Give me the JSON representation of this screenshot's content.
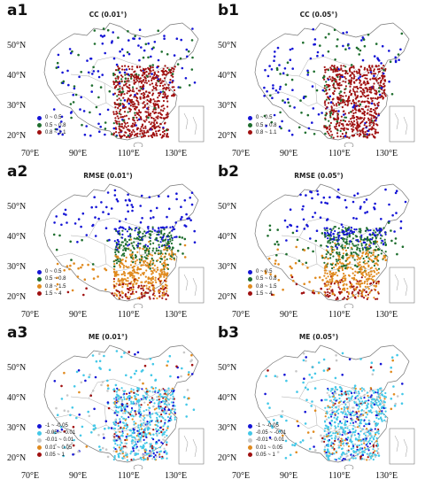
{
  "panels": [
    {
      "id": "a1",
      "title": "CC (0.01°)",
      "legend": [
        {
          "label": "0 ~ 0.5",
          "color": "#1515d6"
        },
        {
          "label": "0.5 ~ 0.8",
          "color": "#1e6e2e"
        },
        {
          "label": "0.8 ~ 1.1",
          "color": "#a01010"
        }
      ]
    },
    {
      "id": "b1",
      "title": "CC (0.05°)",
      "legend": [
        {
          "label": "0 ~ 0.5",
          "color": "#1515d6"
        },
        {
          "label": "0.5 ~ 0.8",
          "color": "#1e6e2e"
        },
        {
          "label": "0.8 ~ 1.1",
          "color": "#a01010"
        }
      ]
    },
    {
      "id": "a2",
      "title": "RMSE (0.01°)",
      "legend": [
        {
          "label": "0 ~ 0.5",
          "color": "#1515d6"
        },
        {
          "label": "0.5 ~ 0.8",
          "color": "#1e6e2e"
        },
        {
          "label": "0.8 ~ 1.5",
          "color": "#e08a1e"
        },
        {
          "label": "1.5 ~ 4",
          "color": "#a01010"
        }
      ]
    },
    {
      "id": "b2",
      "title": "RMSE (0.05°)",
      "legend": [
        {
          "label": "0 ~ 0.5",
          "color": "#1515d6"
        },
        {
          "label": "0.5 ~ 0.8",
          "color": "#1e6e2e"
        },
        {
          "label": "0.8 ~ 1.5",
          "color": "#e08a1e"
        },
        {
          "label": "1.5 ~ 4",
          "color": "#a01010"
        }
      ]
    },
    {
      "id": "a3",
      "title": "ME (0.01°)",
      "legend": [
        {
          "label": "-1 ~ -0.05",
          "color": "#1515d6"
        },
        {
          "label": "-0.05 ~ -0.01",
          "color": "#44c8e8"
        },
        {
          "label": "-0.01 ~ 0.01",
          "color": "#c8c8c8"
        },
        {
          "label": "0.01 ~ 0.05",
          "color": "#e08a1e"
        },
        {
          "label": "0.05 ~ 1",
          "color": "#a01010"
        }
      ]
    },
    {
      "id": "b3",
      "title": "ME (0.05°)",
      "legend": [
        {
          "label": "-1 ~ -0.05",
          "color": "#1515d6"
        },
        {
          "label": "-0.05 ~ -0.01",
          "color": "#44c8e8"
        },
        {
          "label": "-0.01 ~ 0.01",
          "color": "#c8c8c8"
        },
        {
          "label": "0.01 ~ 0.05",
          "color": "#e08a1e"
        },
        {
          "label": "0.05 ~ 1",
          "color": "#a01010"
        }
      ]
    }
  ],
  "axes": {
    "lat_labels": [
      "50°N",
      "40°N",
      "30°N",
      "20°N"
    ],
    "lon_labels": [
      "70°E",
      "90°E",
      "110°E",
      "130°E"
    ]
  }
}
